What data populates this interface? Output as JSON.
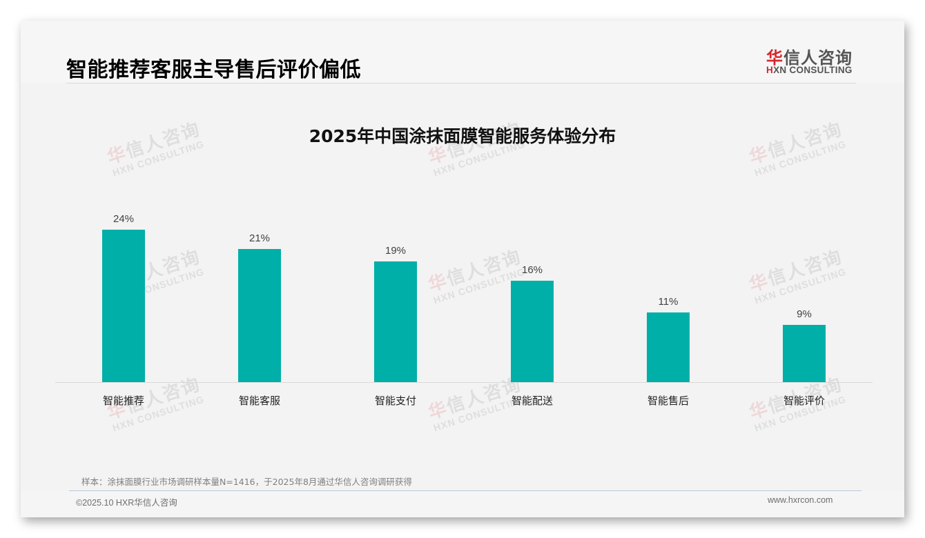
{
  "header": {
    "title": "智能推荐客服主导售后评价偏低",
    "logo": {
      "cn_first": "华",
      "cn_rest": "信人咨询",
      "en_first": "H",
      "en_rest": "XN CONSULTING"
    }
  },
  "watermark": {
    "cn_first": "华",
    "cn_rest": "信人咨询",
    "en": "HXN CONSULTING"
  },
  "chart_data": {
    "type": "bar",
    "title": "2025年中国涂抹面膜智能服务体验分布",
    "categories": [
      "智能推荐",
      "智能客服",
      "智能支付",
      "智能配送",
      "智能售后",
      "智能评价"
    ],
    "values": [
      24,
      21,
      19,
      16,
      11,
      9
    ],
    "value_labels": [
      "24%",
      "21%",
      "19%",
      "16%",
      "11%",
      "9%"
    ],
    "unit": "%",
    "xlabel": "",
    "ylabel": "",
    "ylim": [
      0,
      28.7
    ],
    "grid": false,
    "legend": "none",
    "bar_color": "#00afa8"
  },
  "footer": {
    "source_note": "样本：涂抹面膜行业市场调研样本量N=1416，于2025年8月通过华信人咨询调研获得",
    "copyright": "©2025.10 HXR华信人咨询",
    "website": "www.hxrcon.com"
  }
}
